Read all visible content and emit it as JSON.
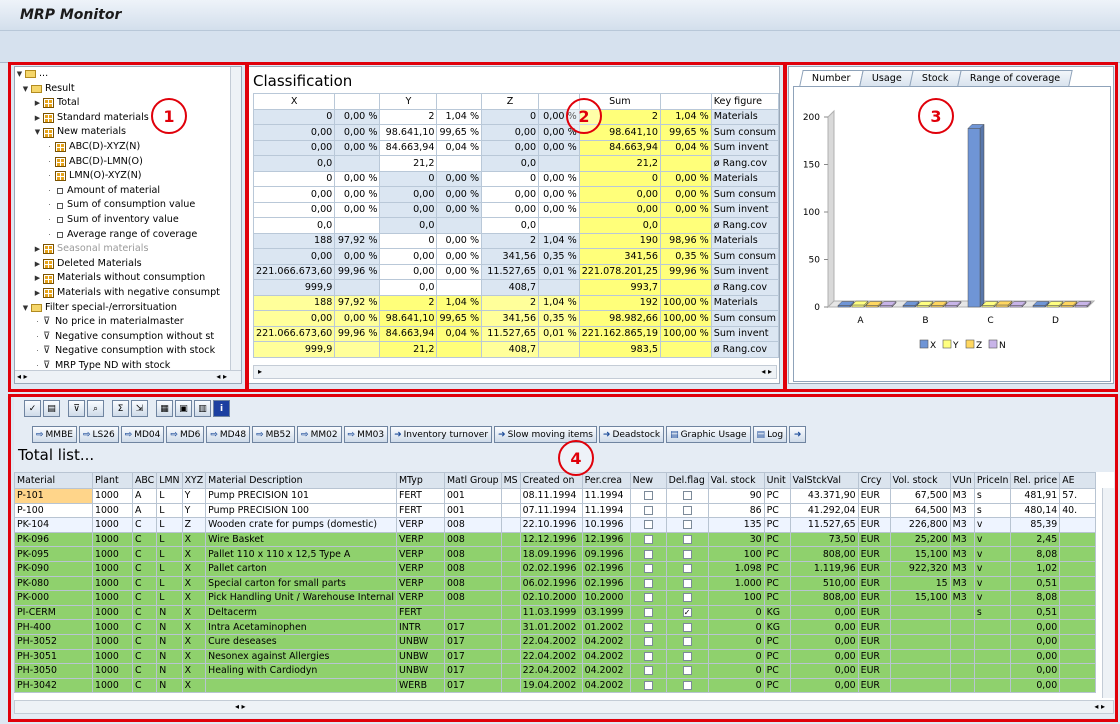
{
  "window": {
    "title": "MRP Monitor"
  },
  "markers": [
    "1",
    "2",
    "3",
    "4"
  ],
  "tree": {
    "root": "...",
    "items": [
      {
        "level": 0,
        "kind": "folder",
        "open": true,
        "label": "Result"
      },
      {
        "level": 1,
        "kind": "table",
        "open": false,
        "label": "Total"
      },
      {
        "level": 1,
        "kind": "table",
        "open": false,
        "label": "Standard materials"
      },
      {
        "level": 1,
        "kind": "table",
        "open": true,
        "label": "New materials"
      },
      {
        "level": 2,
        "kind": "table",
        "label": "ABC(D)-XYZ(N)"
      },
      {
        "level": 2,
        "kind": "table",
        "label": "ABC(D)-LMN(O)"
      },
      {
        "level": 2,
        "kind": "table",
        "label": "LMN(O)-XYZ(N)"
      },
      {
        "level": 2,
        "kind": "leaf",
        "label": "Amount of material"
      },
      {
        "level": 2,
        "kind": "leaf",
        "label": "Sum of consumption value"
      },
      {
        "level": 2,
        "kind": "leaf",
        "label": "Sum of inventory value"
      },
      {
        "level": 2,
        "kind": "leaf",
        "label": "Average range of coverage"
      },
      {
        "level": 1,
        "kind": "table",
        "open": false,
        "label": "Seasonal materials",
        "gray": true
      },
      {
        "level": 1,
        "kind": "table",
        "open": false,
        "label": "Deleted Materials"
      },
      {
        "level": 1,
        "kind": "table",
        "open": false,
        "label": "Materials without consumption"
      },
      {
        "level": 1,
        "kind": "table",
        "open": false,
        "label": "Materials with negative consumpt"
      },
      {
        "level": 0,
        "kind": "folder",
        "open": true,
        "label": "Filter special-/errorsituation"
      },
      {
        "level": 1,
        "kind": "filter",
        "label": "No price in materialmaster"
      },
      {
        "level": 1,
        "kind": "filter",
        "label": "Negative consumption without st"
      },
      {
        "level": 1,
        "kind": "filter",
        "label": "Negative consumption with stock"
      },
      {
        "level": 1,
        "kind": "filter",
        "label": "MRP Type ND with stock"
      }
    ]
  },
  "classification": {
    "title": "Classification",
    "headers": [
      "X",
      "",
      "Y",
      "",
      "Z",
      "",
      "Sum",
      "",
      "Key figure"
    ],
    "rows": [
      {
        "c": [
          "0",
          "0,00 %",
          "2",
          "1,04 %",
          "0",
          "0,00 %",
          "2",
          "1,04 %",
          "Materials"
        ],
        "s": [
          "b",
          "b",
          "w",
          "w",
          "b",
          "b",
          "y",
          "y"
        ]
      },
      {
        "c": [
          "0,00",
          "0,00 %",
          "98.641,10",
          "99,65 %",
          "0,00",
          "0,00 %",
          "98.641,10",
          "99,65 %",
          "Sum consum"
        ],
        "s": [
          "b",
          "b",
          "w",
          "w",
          "b",
          "b",
          "y",
          "y"
        ]
      },
      {
        "c": [
          "0,00",
          "0,00 %",
          "84.663,94",
          "0,04 %",
          "0,00",
          "0,00 %",
          "84.663,94",
          "0,04 %",
          "Sum invent"
        ],
        "s": [
          "b",
          "b",
          "w",
          "w",
          "b",
          "b",
          "y",
          "y"
        ]
      },
      {
        "c": [
          "0,0",
          "",
          "21,2",
          "",
          "0,0",
          "",
          "21,2",
          "",
          "ø Rang.cov"
        ],
        "s": [
          "b",
          "b",
          "w",
          "w",
          "b",
          "b",
          "y",
          "y"
        ]
      },
      {
        "c": [
          "0",
          "0,00 %",
          "0",
          "0,00 %",
          "0",
          "0,00 %",
          "0",
          "0,00 %",
          "Materials"
        ],
        "s": [
          "w",
          "w",
          "b",
          "b",
          "w",
          "w",
          "y",
          "y"
        ]
      },
      {
        "c": [
          "0,00",
          "0,00 %",
          "0,00",
          "0,00 %",
          "0,00",
          "0,00 %",
          "0,00",
          "0,00 %",
          "Sum consum"
        ],
        "s": [
          "w",
          "w",
          "b",
          "b",
          "w",
          "w",
          "y",
          "y"
        ]
      },
      {
        "c": [
          "0,00",
          "0,00 %",
          "0,00",
          "0,00 %",
          "0,00",
          "0,00 %",
          "0,00",
          "0,00 %",
          "Sum invent"
        ],
        "s": [
          "w",
          "w",
          "b",
          "b",
          "w",
          "w",
          "y",
          "y"
        ]
      },
      {
        "c": [
          "0,0",
          "",
          "0,0",
          "",
          "0,0",
          "",
          "0,0",
          "",
          "ø Rang.cov"
        ],
        "s": [
          "w",
          "w",
          "b",
          "b",
          "w",
          "w",
          "y",
          "y"
        ]
      },
      {
        "c": [
          "188",
          "97,92 %",
          "0",
          "0,00 %",
          "2",
          "1,04 %",
          "190",
          "98,96 %",
          "Materials"
        ],
        "s": [
          "b",
          "b",
          "w",
          "w",
          "b",
          "b",
          "y",
          "y"
        ]
      },
      {
        "c": [
          "0,00",
          "0,00 %",
          "0,00",
          "0,00 %",
          "341,56",
          "0,35 %",
          "341,56",
          "0,35 %",
          "Sum consum"
        ],
        "s": [
          "b",
          "b",
          "w",
          "w",
          "b",
          "b",
          "y",
          "y"
        ]
      },
      {
        "c": [
          "221.066.673,60",
          "99,96 %",
          "0,00",
          "0,00 %",
          "11.527,65",
          "0,01 %",
          "221.078.201,25",
          "99,96 %",
          "Sum invent"
        ],
        "s": [
          "b",
          "b",
          "w",
          "w",
          "b",
          "b",
          "y",
          "y"
        ]
      },
      {
        "c": [
          "999,9",
          "",
          "0,0",
          "",
          "408,7",
          "",
          "993,7",
          "",
          "ø Rang.cov"
        ],
        "s": [
          "b",
          "b",
          "w",
          "w",
          "b",
          "b",
          "y",
          "y"
        ]
      },
      {
        "c": [
          "188",
          "97,92 %",
          "2",
          "1,04 %",
          "2",
          "1,04 %",
          "192",
          "100,00 %",
          "Materials"
        ],
        "s": [
          "yb",
          "yb",
          "y",
          "y",
          "yb",
          "yb",
          "y",
          "y"
        ]
      },
      {
        "c": [
          "0,00",
          "0,00 %",
          "98.641,10",
          "99,65 %",
          "341,56",
          "0,35 %",
          "98.982,66",
          "100,00 %",
          "Sum consum"
        ],
        "s": [
          "yb",
          "yb",
          "y",
          "y",
          "yb",
          "yb",
          "y",
          "y"
        ]
      },
      {
        "c": [
          "221.066.673,60",
          "99,96 %",
          "84.663,94",
          "0,04 %",
          "11.527,65",
          "0,01 %",
          "221.162.865,19",
          "100,00 %",
          "Sum invent"
        ],
        "s": [
          "yb",
          "yb",
          "y",
          "y",
          "yb",
          "yb",
          "y",
          "y"
        ]
      },
      {
        "c": [
          "999,9",
          "",
          "21,2",
          "",
          "408,7",
          "",
          "983,5",
          "",
          "ø Rang.cov"
        ],
        "s": [
          "yb",
          "yb",
          "y",
          "y",
          "yb",
          "yb",
          "y",
          "y"
        ]
      }
    ]
  },
  "chart_tabs": [
    "Number",
    "Usage",
    "Stock",
    "Range of coverage"
  ],
  "chart_data": {
    "type": "bar",
    "categories": [
      "A",
      "B",
      "C",
      "D"
    ],
    "series": [
      {
        "name": "X",
        "values": [
          0,
          0,
          188,
          0
        ],
        "color": "#6f95d6"
      },
      {
        "name": "Y",
        "values": [
          2,
          0,
          0,
          0
        ],
        "color": "#ffff80"
      },
      {
        "name": "Z",
        "values": [
          0,
          0,
          2,
          0
        ],
        "color": "#ffd760"
      },
      {
        "name": "N",
        "values": [
          0,
          0,
          0,
          0
        ],
        "color": "#c8b4e8"
      }
    ],
    "yticks": [
      0,
      50,
      100,
      150,
      200
    ],
    "ylim": [
      0,
      200
    ],
    "legend": "bottom"
  },
  "toolbar": {
    "icons": [
      "check-icon",
      "print-icon",
      "filter-icon",
      "find-icon",
      "sum-icon",
      "export-icon",
      "layout-icon",
      "save-icon",
      "grid-icon",
      "info-icon"
    ],
    "buttons": [
      {
        "label": "MMBE",
        "arrow": "⇨"
      },
      {
        "label": "LS26",
        "arrow": "⇨"
      },
      {
        "label": "MD04",
        "arrow": "⇨"
      },
      {
        "label": "MD6",
        "arrow": "⇨"
      },
      {
        "label": "MD48",
        "arrow": "⇨"
      },
      {
        "label": "MB52",
        "arrow": "⇨"
      },
      {
        "label": "MM02",
        "arrow": "⇨"
      },
      {
        "label": "MM03",
        "arrow": "⇨"
      },
      {
        "label": "Inventory turnover",
        "arrow": "➜"
      },
      {
        "label": "Slow moving items",
        "arrow": "➜"
      },
      {
        "label": "Deadstock",
        "arrow": "➜"
      },
      {
        "label": "Graphic Usage",
        "arrow": "▤"
      },
      {
        "label": "Log",
        "arrow": "▤"
      }
    ]
  },
  "total": {
    "title": "Total list...",
    "columns": [
      "Material",
      "Plant",
      "ABC",
      "LMN",
      "XYZ",
      "Material Description",
      "MTyp",
      "Matl Group",
      "MS",
      "Created on",
      "Per.crea",
      "New",
      "Del.flag",
      "Val. stock",
      "Unit",
      "ValStckVal",
      "Crcy",
      "Vol. stock",
      "VUn",
      "PriceIn",
      "Rel. price",
      "AE"
    ],
    "rows": [
      {
        "style": "rw",
        "c": [
          "P-101",
          "1000",
          "A",
          "L",
          "Y",
          "Pump PRECISION 101",
          "FERT",
          "001",
          "",
          "08.11.1994",
          "11.1994",
          "",
          "",
          "90",
          "PC",
          "43.371,90",
          "EUR",
          "67,500",
          "M3",
          "s",
          "481,91",
          "57."
        ]
      },
      {
        "style": "rw",
        "c": [
          "P-100",
          "1000",
          "A",
          "L",
          "Y",
          "Pump PRECISION 100",
          "FERT",
          "001",
          "",
          "07.11.1994",
          "11.1994",
          "",
          "",
          "86",
          "PC",
          "41.292,04",
          "EUR",
          "64,500",
          "M3",
          "s",
          "480,14",
          "40."
        ]
      },
      {
        "style": "rlb",
        "c": [
          "PK-104",
          "1000",
          "C",
          "L",
          "Z",
          "Wooden crate for pumps (domestic)",
          "VERP",
          "008",
          "",
          "22.10.1996",
          "10.1996",
          "",
          "",
          "135",
          "PC",
          "11.527,65",
          "EUR",
          "226,800",
          "M3",
          "v",
          "85,39",
          ""
        ]
      },
      {
        "style": "rg",
        "c": [
          "PK-096",
          "1000",
          "C",
          "L",
          "X",
          "Wire Basket",
          "VERP",
          "008",
          "",
          "12.12.1996",
          "12.1996",
          "",
          "",
          "30",
          "PC",
          "73,50",
          "EUR",
          "25,200",
          "M3",
          "v",
          "2,45",
          ""
        ]
      },
      {
        "style": "rg",
        "c": [
          "PK-095",
          "1000",
          "C",
          "L",
          "X",
          "Pallet 110 x 110 x 12,5 Type A",
          "VERP",
          "008",
          "",
          "18.09.1996",
          "09.1996",
          "",
          "",
          "100",
          "PC",
          "808,00",
          "EUR",
          "15,100",
          "M3",
          "v",
          "8,08",
          ""
        ]
      },
      {
        "style": "rg",
        "c": [
          "PK-090",
          "1000",
          "C",
          "L",
          "X",
          "Pallet carton",
          "VERP",
          "008",
          "",
          "02.02.1996",
          "02.1996",
          "",
          "",
          "1.098",
          "PC",
          "1.119,96",
          "EUR",
          "922,320",
          "M3",
          "v",
          "1,02",
          ""
        ]
      },
      {
        "style": "rg",
        "c": [
          "PK-080",
          "1000",
          "C",
          "L",
          "X",
          "Special carton for small parts",
          "VERP",
          "008",
          "",
          "06.02.1996",
          "02.1996",
          "",
          "",
          "1.000",
          "PC",
          "510,00",
          "EUR",
          "15",
          "M3",
          "v",
          "0,51",
          ""
        ]
      },
      {
        "style": "rg",
        "c": [
          "PK-000",
          "1000",
          "C",
          "L",
          "X",
          "Pick Handling Unit / Warehouse Internal",
          "VERP",
          "008",
          "",
          "02.10.2000",
          "10.2000",
          "",
          "",
          "100",
          "PC",
          "808,00",
          "EUR",
          "15,100",
          "M3",
          "v",
          "8,08",
          ""
        ]
      },
      {
        "style": "rg",
        "c": [
          "PI-CERM",
          "1000",
          "C",
          "N",
          "X",
          "Deltacerm",
          "FERT",
          "",
          "",
          "11.03.1999",
          "03.1999",
          "",
          "✓",
          "0",
          "KG",
          "0,00",
          "EUR",
          "",
          "",
          "s",
          "0,51",
          ""
        ]
      },
      {
        "style": "rg",
        "c": [
          "PH-400",
          "1000",
          "C",
          "N",
          "X",
          "Intra Acetaminophen",
          "INTR",
          "017",
          "",
          "31.01.2002",
          "01.2002",
          "",
          "",
          "0",
          "KG",
          "0,00",
          "EUR",
          "",
          "",
          "",
          "0,00",
          ""
        ]
      },
      {
        "style": "rg",
        "c": [
          "PH-3052",
          "1000",
          "C",
          "N",
          "X",
          "Cure deseases",
          "UNBW",
          "017",
          "",
          "22.04.2002",
          "04.2002",
          "",
          "",
          "0",
          "PC",
          "0,00",
          "EUR",
          "",
          "",
          "",
          "0,00",
          ""
        ]
      },
      {
        "style": "rg",
        "c": [
          "PH-3051",
          "1000",
          "C",
          "N",
          "X",
          "Nesonex against Allergies",
          "UNBW",
          "017",
          "",
          "22.04.2002",
          "04.2002",
          "",
          "",
          "0",
          "PC",
          "0,00",
          "EUR",
          "",
          "",
          "",
          "0,00",
          ""
        ]
      },
      {
        "style": "rg",
        "c": [
          "PH-3050",
          "1000",
          "C",
          "N",
          "X",
          "Healing with Cardiodyn",
          "UNBW",
          "017",
          "",
          "22.04.2002",
          "04.2002",
          "",
          "",
          "0",
          "PC",
          "0,00",
          "EUR",
          "",
          "",
          "",
          "0,00",
          ""
        ]
      },
      {
        "style": "rg",
        "c": [
          "PH-3042",
          "1000",
          "C",
          "N",
          "X",
          "",
          "WERB",
          "017",
          "",
          "19.04.2002",
          "04.2002",
          "",
          "",
          "0",
          "PC",
          "0,00",
          "EUR",
          "",
          "",
          "",
          "0,00",
          ""
        ]
      }
    ]
  }
}
